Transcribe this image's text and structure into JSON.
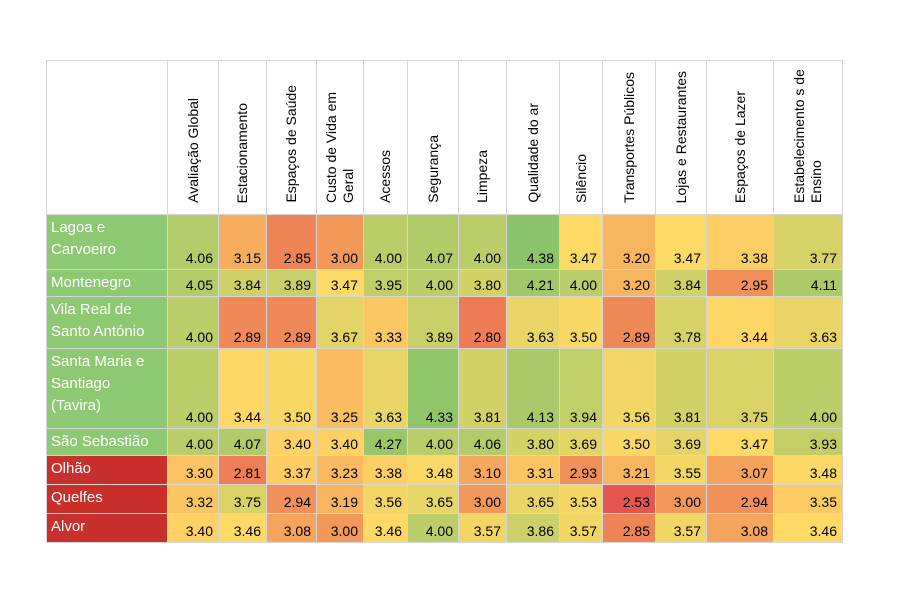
{
  "chart_data": {
    "type": "heatmap",
    "columns": [
      "Avaliação Global",
      "Estacionamento",
      "Espaços de Saúde",
      "Custo de Vida em Geral",
      "Acessos",
      "Segurança",
      "Limpeza",
      "Qualidade do ar",
      "Silêncio",
      "Transportes Públicos",
      "Lojas e Restaurantes",
      "Espaços de Lazer",
      "Estabelecimentos de Ensino"
    ],
    "column_labels": [
      "Avaliação Global",
      "Estacionamento",
      "Espaços de Saúde",
      "Custo de Vida em Geral",
      "Acessos",
      "Segurança",
      "Limpeza",
      "Qualidade do ar",
      "Silêncio",
      "Transportes Públicos",
      "Lojas e Restaurantes",
      "Espaços de Lazer",
      "Estabelecimento s de Ensino"
    ],
    "rows": [
      {
        "name": "Lagoa e Carvoeiro",
        "name_color": "#8dc873",
        "values": [
          "4.06",
          "3.15",
          "2.85",
          "3.00",
          "4.00",
          "4.07",
          "4.00",
          "4.38",
          "3.47",
          "3.20",
          "3.47",
          "3.38",
          "3.77"
        ]
      },
      {
        "name": "Montenegro",
        "name_color": "#8dc873",
        "values": [
          "4.05",
          "3.84",
          "3.89",
          "3.47",
          "3.95",
          "4.00",
          "3.80",
          "4.21",
          "4.00",
          "3.20",
          "3.84",
          "2.95",
          "4.11"
        ]
      },
      {
        "name": "Vila Real de Santo António",
        "name_color": "#8dc873",
        "values": [
          "4.00",
          "2.89",
          "2.89",
          "3.67",
          "3.33",
          "3.89",
          "2.80",
          "3.63",
          "3.50",
          "2.89",
          "3.78",
          "3.44",
          "3.63"
        ]
      },
      {
        "name": "Santa Maria e Santiago (Tavira)",
        "name_color": "#8dc873",
        "values": [
          "4.00",
          "3.44",
          "3.50",
          "3.25",
          "3.63",
          "4.33",
          "3.81",
          "4.13",
          "3.94",
          "3.56",
          "3.81",
          "3.75",
          "4.00"
        ]
      },
      {
        "name": "São Sebastião",
        "name_color": "#8dc873",
        "values": [
          "4.00",
          "4.07",
          "3.40",
          "3.40",
          "4.27",
          "4.00",
          "4.06",
          "3.80",
          "3.69",
          "3.50",
          "3.69",
          "3.47",
          "3.93"
        ]
      },
      {
        "name": "Olhão",
        "name_color": "#c9302c",
        "values": [
          "3.30",
          "2.81",
          "3.37",
          "3.23",
          "3.38",
          "3.48",
          "3.10",
          "3.31",
          "2.93",
          "3.21",
          "3.55",
          "3.07",
          "3.48"
        ]
      },
      {
        "name": "Quelfes",
        "name_color": "#c9302c",
        "values": [
          "3.32",
          "3.75",
          "2.94",
          "3.19",
          "3.56",
          "3.65",
          "3.00",
          "3.65",
          "3.53",
          "2.53",
          "3.00",
          "2.94",
          "3.35"
        ]
      },
      {
        "name": "Alvor",
        "name_color": "#c9302c",
        "values": [
          "3.40",
          "3.46",
          "3.08",
          "3.00",
          "3.46",
          "4.00",
          "3.57",
          "3.86",
          "3.57",
          "2.85",
          "3.57",
          "3.08",
          "3.46"
        ]
      }
    ],
    "color_scale": {
      "low": "#e5564e",
      "mid": "#ffd966",
      "high": "#8bc46a",
      "min": 2.53,
      "max": 4.38
    },
    "grid": true
  }
}
